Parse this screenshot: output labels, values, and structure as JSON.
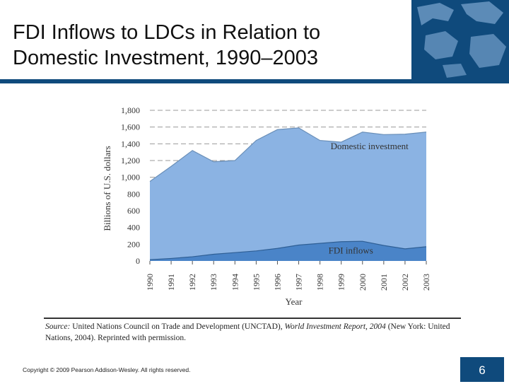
{
  "slide": {
    "title_line1": "FDI Inflows to LDCs in Relation to",
    "title_line2": "Domestic Investment, 1990–2003",
    "copyright": "Copyright © 2009 Pearson Addison-Wesley. All rights reserved.",
    "page_number": "6"
  },
  "source": {
    "lead": "Source:",
    "text1": " United Nations Council on Trade and Development (UNCTAD), ",
    "report": "World Investment Report, 2004",
    "text2": " (New York: United Nations, 2004). Reprinted with permission."
  },
  "colors": {
    "domestic_fill": "#8bb3e3",
    "fdi_fill": "#4a84c8",
    "banner": "#0f4a7c"
  },
  "chart_data": {
    "type": "area",
    "stacked": true,
    "x": [
      1990,
      1991,
      1992,
      1993,
      1994,
      1995,
      1996,
      1997,
      1998,
      1999,
      2000,
      2001,
      2002,
      2003
    ],
    "x_tick_labels": [
      "1990",
      "1991",
      "1992",
      "1993",
      "1994",
      "1995",
      "1996",
      "1997",
      "1998",
      "1999",
      "2000",
      "2001",
      "2002",
      "2003"
    ],
    "y_tick_labels": [
      "0",
      "200",
      "400",
      "600",
      "800",
      "1,000",
      "1,200",
      "1,400",
      "1,600",
      "1,800"
    ],
    "ylim": [
      0,
      1800
    ],
    "xlabel": "Year",
    "ylabel": "Billions of U.S. dollars",
    "grid": "horizontal dashed",
    "series": [
      {
        "name": "FDI inflows",
        "values": [
          15,
          30,
          50,
          80,
          100,
          120,
          150,
          190,
          210,
          230,
          235,
          185,
          145,
          170
        ]
      },
      {
        "name": "Domestic investment",
        "values": [
          935,
          1100,
          1270,
          1105,
          1100,
          1320,
          1420,
          1400,
          1230,
          1190,
          1305,
          1325,
          1370,
          1370
        ]
      }
    ]
  }
}
